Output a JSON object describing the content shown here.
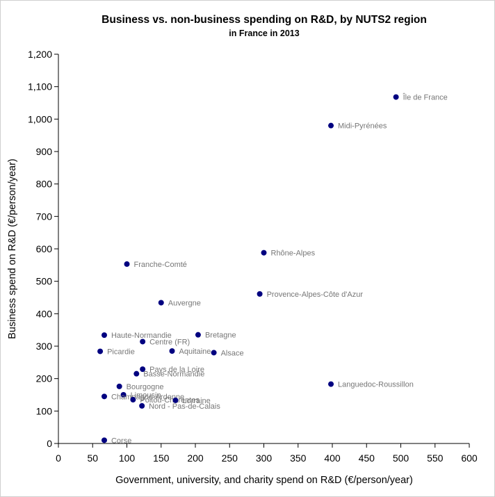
{
  "chart_data": {
    "type": "scatter",
    "title": "Business vs. non-business spending on R&D, by NUTS2 region",
    "subtitle": "in France in 2013",
    "xlabel": "Government, university, and charity spend on R&D (€/person/year)",
    "ylabel": "Business spend on R&D (€/person/year)",
    "xlim": [
      0,
      600
    ],
    "ylim": [
      0,
      1200
    ],
    "x_ticks": [
      0,
      50,
      100,
      150,
      200,
      250,
      300,
      350,
      400,
      450,
      500,
      550,
      600
    ],
    "y_ticks": [
      0,
      100,
      200,
      300,
      400,
      500,
      600,
      700,
      800,
      900,
      1000,
      1100,
      1200
    ],
    "x_tick_labels": [
      "0",
      "50",
      "100",
      "150",
      "200",
      "250",
      "300",
      "350",
      "400",
      "450",
      "500",
      "550",
      "600"
    ],
    "y_tick_labels": [
      "0",
      "100",
      "200",
      "300",
      "400",
      "500",
      "600",
      "700",
      "800",
      "900",
      "1,000",
      "1,100",
      "1,200"
    ],
    "grid": false,
    "point_color": "#000080",
    "label_color": "#777777",
    "points": [
      {
        "label": "Île de France",
        "x": 493,
        "y": 1068
      },
      {
        "label": "Midi-Pyrénées",
        "x": 398,
        "y": 980
      },
      {
        "label": "Rhône-Alpes",
        "x": 300,
        "y": 588
      },
      {
        "label": "Franche-Comté",
        "x": 100,
        "y": 553
      },
      {
        "label": "Provence-Alpes-Côte d'Azur",
        "x": 294,
        "y": 461
      },
      {
        "label": "Auvergne",
        "x": 150,
        "y": 434
      },
      {
        "label": "Haute-Normandie",
        "x": 67,
        "y": 334
      },
      {
        "label": "Bretagne",
        "x": 204,
        "y": 335
      },
      {
        "label": "Centre (FR)",
        "x": 123,
        "y": 314
      },
      {
        "label": "Aquitaine",
        "x": 166,
        "y": 285
      },
      {
        "label": "Alsace",
        "x": 227,
        "y": 280
      },
      {
        "label": "Picardie",
        "x": 61,
        "y": 284
      },
      {
        "label": "Pays de la Loire",
        "x": 123,
        "y": 229
      },
      {
        "label": "Basse-Normandie",
        "x": 114,
        "y": 215
      },
      {
        "label": "Languedoc-Roussillon",
        "x": 398,
        "y": 183
      },
      {
        "label": "Bourgogne",
        "x": 89,
        "y": 176
      },
      {
        "label": "Limousin",
        "x": 95,
        "y": 150
      },
      {
        "label": "Champagne-Ardenne",
        "x": 67,
        "y": 145
      },
      {
        "label": "Poitou-Charentes",
        "x": 109,
        "y": 135
      },
      {
        "label": "Lorraine",
        "x": 171,
        "y": 133
      },
      {
        "label": "Nord - Pas-de-Calais",
        "x": 122,
        "y": 116
      },
      {
        "label": "Corse",
        "x": 67,
        "y": 10
      }
    ]
  }
}
